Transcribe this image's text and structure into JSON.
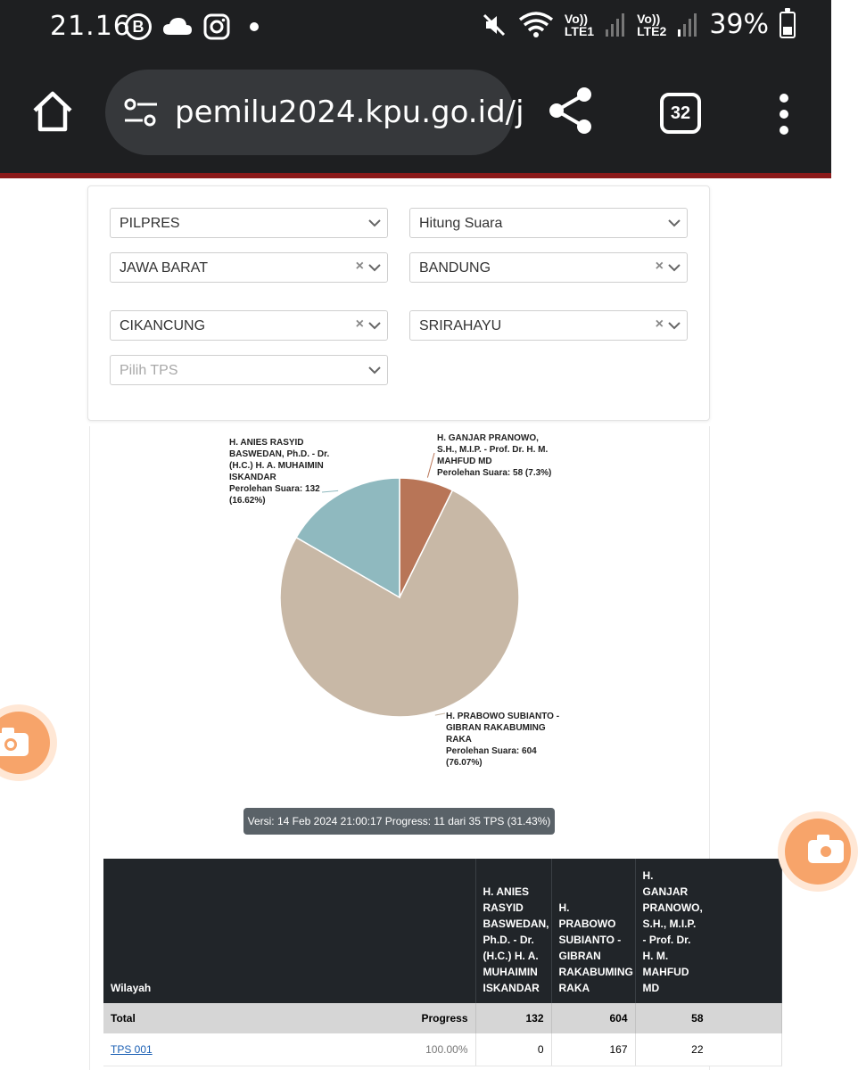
{
  "status_bar": {
    "time": "21.16",
    "left_icons": [
      "b-circle-icon",
      "cloud-icon",
      "instagram-icon",
      "dot-icon"
    ],
    "network_1": [
      "Vo))",
      "LTE1"
    ],
    "network_2": [
      "Vo))",
      "LTE2"
    ],
    "battery": "39%",
    "battery_level": 0.39
  },
  "browser": {
    "url": "pemilu2024.kpu.go.id/j",
    "tab_count": "32"
  },
  "filters": {
    "election": "PILPRES",
    "mode": "Hitung Suara",
    "province": "JAWA BARAT",
    "city": "BANDUNG",
    "district": "CIKANCUNG",
    "village": "SRIRAHAYU",
    "tps_placeholder": "Pilih TPS",
    "clear_symbol": "×"
  },
  "chart_data": {
    "type": "pie",
    "title": "",
    "slices": [
      {
        "name": "H. GANJAR PRANOWO, S.H., M.I.P. - Prof. Dr. H. M. MAHFUD MD",
        "value": 58,
        "percent": 7.3,
        "color": "#b87557"
      },
      {
        "name": "H. PRABOWO SUBIANTO - GIBRAN RAKABUMING RAKA",
        "value": 604,
        "percent": 76.07,
        "color": "#c8b8a6"
      },
      {
        "name": "H. ANIES RASYID BASWEDAN, Ph.D. - Dr. (H.C.) H. A. MUHAIMIN ISKANDAR",
        "value": 132,
        "percent": 16.62,
        "color": "#8fb9bf"
      }
    ],
    "labels": {
      "anies": [
        "H. ANIES RASYID",
        "BASWEDAN, Ph.D. - Dr.",
        "(H.C.) H. A. MUHAIMIN",
        "ISKANDAR",
        "Perolehan Suara: 132",
        "(16.62%)"
      ],
      "ganjar": [
        "H. GANJAR PRANOWO,",
        "S.H., M.I.P. - Prof. Dr. H. M.",
        "MAHFUD MD",
        "Perolehan Suara: 58 (7.3%)"
      ],
      "prabowo": [
        "H. PRABOWO SUBIANTO -",
        "GIBRAN RAKABUMING",
        "RAKA",
        "Perolehan Suara: 604",
        "(76.07%)"
      ]
    }
  },
  "version_text": "Versi: 14 Feb 2024 21:00:17 Progress: 11 dari 35 TPS (31.43%)",
  "table": {
    "headers": {
      "wilayah": "Wilayah",
      "anies": [
        "H. ANIES",
        "RASYID",
        "BASWEDAN,",
        "Ph.D. - Dr.",
        "(H.C.) H. A.",
        "MUHAIMIN",
        "ISKANDAR"
      ],
      "prabowo": [
        "H. PRABOWO",
        "SUBIANTO -",
        "GIBRAN",
        "RAKABUMING",
        "RAKA"
      ],
      "ganjar": [
        "H.",
        "GANJAR",
        "PRANOWO,",
        "S.H., M.I.P.",
        "- Prof. Dr.",
        "H. M.",
        "MAHFUD",
        "MD"
      ]
    },
    "total": {
      "label": "Total",
      "progress_label": "Progress",
      "anies": "132",
      "prabowo": "604",
      "ganjar": "58"
    },
    "rows": [
      {
        "wilayah": "TPS 001",
        "progress": "100.00%",
        "anies": "0",
        "prabowo": "167",
        "ganjar": "22"
      }
    ]
  }
}
